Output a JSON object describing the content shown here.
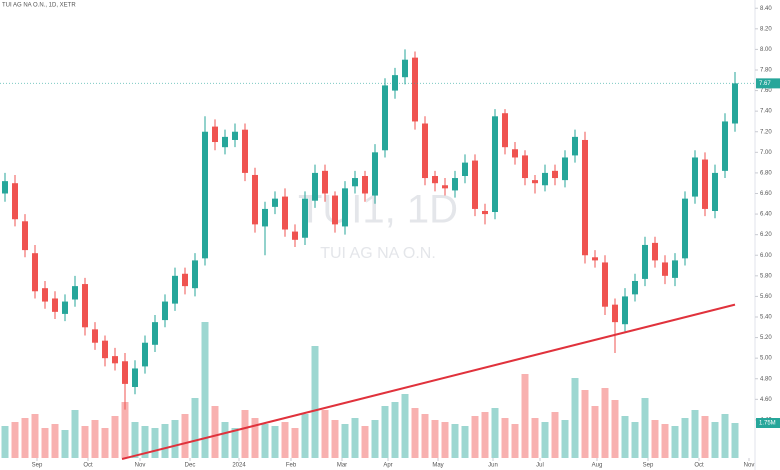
{
  "chart_data": {
    "type": "candlestick",
    "title": "TUI AG NA O.N., 1D, XETR",
    "watermark": "TUI1, 1D",
    "watermark_subtitle": "TUI AG NA O.N.",
    "up_color": "#26a69a",
    "down_color": "#ef5350",
    "open": [
      6.6,
      6.7,
      6.33,
      6.02,
      5.68,
      5.58,
      5.43,
      5.57,
      5.72,
      5.28,
      5.17,
      5.02,
      4.97,
      4.72,
      4.92,
      5.13,
      5.37,
      5.53,
      5.82,
      5.68,
      5.97,
      7.25,
      7.05,
      7.12,
      7.22,
      6.78,
      6.28,
      6.47,
      6.57,
      6.23,
      6.17,
      6.53,
      6.82,
      6.58,
      6.28,
      6.67,
      6.77,
      6.58,
      7.02,
      7.6,
      7.73,
      7.92,
      7.28,
      6.77,
      6.68,
      6.63,
      6.77,
      6.92,
      6.43,
      6.42,
      7.38,
      7.03,
      6.97,
      6.73,
      6.68,
      6.82,
      6.73,
      6.97,
      7.12,
      5.98,
      5.93,
      5.52,
      5.33,
      5.62,
      5.77,
      6.12,
      5.93,
      5.78,
      5.97,
      6.57,
      6.93,
      6.43,
      6.82,
      7.28
    ],
    "high": [
      6.8,
      6.78,
      6.4,
      6.1,
      5.75,
      5.65,
      5.62,
      5.8,
      5.78,
      5.35,
      5.22,
      5.1,
      5.05,
      4.98,
      5.22,
      5.42,
      5.62,
      5.88,
      5.88,
      6.02,
      7.35,
      7.32,
      7.22,
      7.28,
      7.28,
      6.85,
      6.52,
      6.62,
      6.65,
      6.3,
      6.62,
      6.88,
      6.88,
      6.62,
      6.72,
      6.82,
      6.82,
      7.08,
      7.72,
      7.82,
      8.0,
      7.98,
      7.35,
      6.82,
      6.75,
      6.82,
      6.98,
      6.98,
      6.5,
      7.42,
      7.42,
      7.1,
      7.02,
      6.78,
      6.88,
      6.88,
      7.02,
      7.22,
      7.2,
      6.05,
      6.0,
      5.58,
      5.68,
      5.82,
      6.18,
      6.18,
      6.0,
      6.02,
      6.62,
      7.02,
      7.0,
      6.88,
      7.38,
      7.78
    ],
    "low": [
      6.52,
      6.28,
      5.98,
      5.58,
      5.48,
      5.38,
      5.36,
      5.5,
      5.22,
      5.08,
      4.92,
      4.88,
      4.5,
      4.65,
      4.85,
      5.06,
      5.3,
      5.46,
      5.62,
      5.6,
      5.9,
      7.02,
      6.98,
      7.05,
      6.72,
      6.22,
      6.0,
      6.4,
      6.18,
      6.08,
      6.1,
      6.46,
      6.52,
      6.22,
      6.2,
      6.6,
      6.52,
      6.5,
      6.95,
      7.52,
      7.66,
      7.22,
      6.68,
      6.62,
      6.58,
      6.56,
      6.7,
      6.38,
      6.3,
      6.35,
      6.98,
      6.88,
      6.68,
      6.6,
      6.62,
      6.68,
      6.66,
      6.9,
      5.92,
      5.88,
      5.42,
      5.05,
      5.26,
      5.55,
      5.7,
      5.88,
      5.72,
      5.7,
      5.9,
      6.5,
      6.38,
      6.36,
      6.75,
      7.2
    ],
    "close": [
      6.72,
      6.35,
      6.05,
      5.65,
      5.55,
      5.45,
      5.55,
      5.7,
      5.3,
      5.15,
      5.0,
      4.95,
      4.75,
      4.9,
      5.15,
      5.35,
      5.55,
      5.8,
      5.7,
      5.95,
      7.2,
      7.1,
      7.15,
      7.2,
      6.8,
      6.3,
      6.45,
      6.55,
      6.25,
      6.15,
      6.55,
      6.8,
      6.6,
      6.3,
      6.65,
      6.75,
      6.6,
      7.0,
      7.65,
      7.75,
      7.9,
      7.3,
      6.75,
      6.7,
      6.65,
      6.75,
      6.9,
      6.45,
      6.4,
      7.35,
      7.05,
      6.95,
      6.75,
      6.7,
      6.8,
      6.75,
      6.95,
      7.15,
      6.0,
      5.95,
      5.5,
      5.35,
      5.6,
      5.75,
      6.1,
      5.95,
      5.8,
      5.95,
      6.55,
      6.95,
      6.45,
      6.8,
      7.3,
      7.67
    ],
    "volume": [
      1.6,
      1.8,
      2.0,
      2.2,
      1.5,
      1.7,
      1.4,
      2.4,
      1.6,
      1.9,
      1.5,
      2.1,
      2.8,
      1.8,
      1.6,
      1.5,
      1.7,
      1.9,
      2.2,
      3.0,
      6.8,
      2.6,
      1.8,
      1.5,
      2.4,
      2.0,
      1.7,
      1.6,
      1.8,
      1.5,
      2.2,
      5.6,
      2.4,
      1.9,
      1.7,
      2.0,
      1.6,
      1.9,
      2.6,
      2.8,
      3.2,
      2.5,
      2.2,
      1.9,
      1.8,
      1.7,
      1.6,
      2.1,
      2.3,
      2.5,
      2.0,
      1.7,
      4.2,
      2.0,
      1.8,
      2.3,
      1.9,
      4.0,
      3.4,
      2.6,
      3.5,
      2.9,
      2.1,
      1.8,
      3.0,
      1.9,
      1.7,
      1.6,
      2.0,
      2.4,
      2.1,
      1.8,
      2.2,
      1.75
    ],
    "last_volume_label": "1.75M",
    "volume_lim": [
      0,
      7
    ],
    "xlim": [
      -0.5,
      74.5
    ],
    "xticks": [
      {
        "value": 3.2,
        "label": "Sep"
      },
      {
        "value": 8.3,
        "label": "Oct"
      },
      {
        "value": 13.5,
        "label": "Nov"
      },
      {
        "value": 18.5,
        "label": "Dec"
      },
      {
        "value": 23.4,
        "label": "2024"
      },
      {
        "value": 28.6,
        "label": "Feb"
      },
      {
        "value": 33.7,
        "label": "Mar"
      },
      {
        "value": 38.3,
        "label": "Apr"
      },
      {
        "value": 43.3,
        "label": "May"
      },
      {
        "value": 48.8,
        "label": "Jun"
      },
      {
        "value": 53.5,
        "label": "Jul"
      },
      {
        "value": 59.2,
        "label": "Aug"
      },
      {
        "value": 64.3,
        "label": "Sep"
      },
      {
        "value": 69.4,
        "label": "Oct"
      },
      {
        "value": 74.4,
        "label": "Nov"
      }
    ],
    "ylim": [
      4.03,
      8.48
    ],
    "yticks": [
      {
        "value": 4.4,
        "label": "4.40"
      },
      {
        "value": 4.6,
        "label": "4.60"
      },
      {
        "value": 4.8,
        "label": "4.80"
      },
      {
        "value": 5.0,
        "label": "5.00"
      },
      {
        "value": 5.2,
        "label": "5.20"
      },
      {
        "value": 5.4,
        "label": "5.40"
      },
      {
        "value": 5.6,
        "label": "5.60"
      },
      {
        "value": 5.8,
        "label": "5.80"
      },
      {
        "value": 6.0,
        "label": "6.00"
      },
      {
        "value": 6.2,
        "label": "6.20"
      },
      {
        "value": 6.4,
        "label": "6.40"
      },
      {
        "value": 6.6,
        "label": "6.60"
      },
      {
        "value": 6.8,
        "label": "6.80"
      },
      {
        "value": 7.0,
        "label": "7.00"
      },
      {
        "value": 7.2,
        "label": "7.20"
      },
      {
        "value": 7.4,
        "label": "7.40"
      },
      {
        "value": 7.6,
        "label": "7.60"
      },
      {
        "value": 7.8,
        "label": "7.80"
      },
      {
        "value": 8.0,
        "label": "8.00"
      },
      {
        "value": 8.2,
        "label": "8.20"
      },
      {
        "value": 8.4,
        "label": "8.40"
      }
    ],
    "trendline": {
      "color": "#e0323c",
      "x": [
        11.7,
        73
      ],
      "y": [
        4.02,
        5.52
      ]
    }
  }
}
